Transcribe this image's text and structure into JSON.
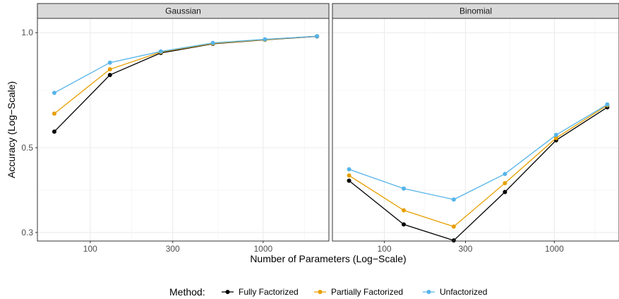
{
  "chart_data": {
    "type": "line",
    "xlabel": "Number of Parameters (Log−Scale)",
    "ylabel": "Accuracy (Log−Scale)",
    "x_scale": "log",
    "y_scale": "log",
    "xlim": [
      49.5,
      2400
    ],
    "ylim": [
      0.285,
      1.09
    ],
    "x_ticks": [
      100,
      300,
      1000
    ],
    "x_tick_labels": [
      "100",
      "300",
      "1000"
    ],
    "y_ticks": [
      0.3,
      0.5,
      1.0
    ],
    "y_tick_labels": [
      "0.3",
      "0.5",
      "1.0"
    ],
    "grid": true,
    "legend": {
      "title": "Method:",
      "position": "bottom",
      "entries": [
        "Fully Factorized",
        "Partially Factorized",
        "Unfactorized"
      ]
    },
    "colors": {
      "Fully Factorized": "#000000",
      "Partially Factorized": "#E69F00",
      "Unfactorized": "#56B4E9"
    },
    "panels": [
      {
        "title": "Gaussian",
        "series": [
          {
            "name": "Fully Factorized",
            "x": [
              62,
              130,
              256,
              512,
              1024,
              2048
            ],
            "y": [
              0.551,
              0.775,
              0.885,
              0.935,
              0.958,
              0.978
            ]
          },
          {
            "name": "Partially Factorized",
            "x": [
              62,
              130,
              256,
              512,
              1024,
              2048
            ],
            "y": [
              0.614,
              0.802,
              0.89,
              0.937,
              0.959,
              0.979
            ]
          },
          {
            "name": "Unfactorized",
            "x": [
              62,
              130,
              256,
              512,
              1024,
              2048
            ],
            "y": [
              0.696,
              0.835,
              0.893,
              0.94,
              0.961,
              0.979
            ]
          }
        ]
      },
      {
        "title": "Binomial",
        "series": [
          {
            "name": "Fully Factorized",
            "x": [
              62,
              130,
              256,
              512,
              1024,
              2048
            ],
            "y": [
              0.41,
              0.315,
              0.286,
              0.383,
              0.523,
              0.638
            ]
          },
          {
            "name": "Partially Factorized",
            "x": [
              62,
              130,
              256,
              512,
              1024,
              2048
            ],
            "y": [
              0.423,
              0.343,
              0.311,
              0.404,
              0.53,
              0.646
            ]
          },
          {
            "name": "Unfactorized",
            "x": [
              62,
              130,
              256,
              512,
              1024,
              2048
            ],
            "y": [
              0.439,
              0.391,
              0.366,
              0.427,
              0.54,
              0.649
            ]
          }
        ]
      }
    ]
  }
}
